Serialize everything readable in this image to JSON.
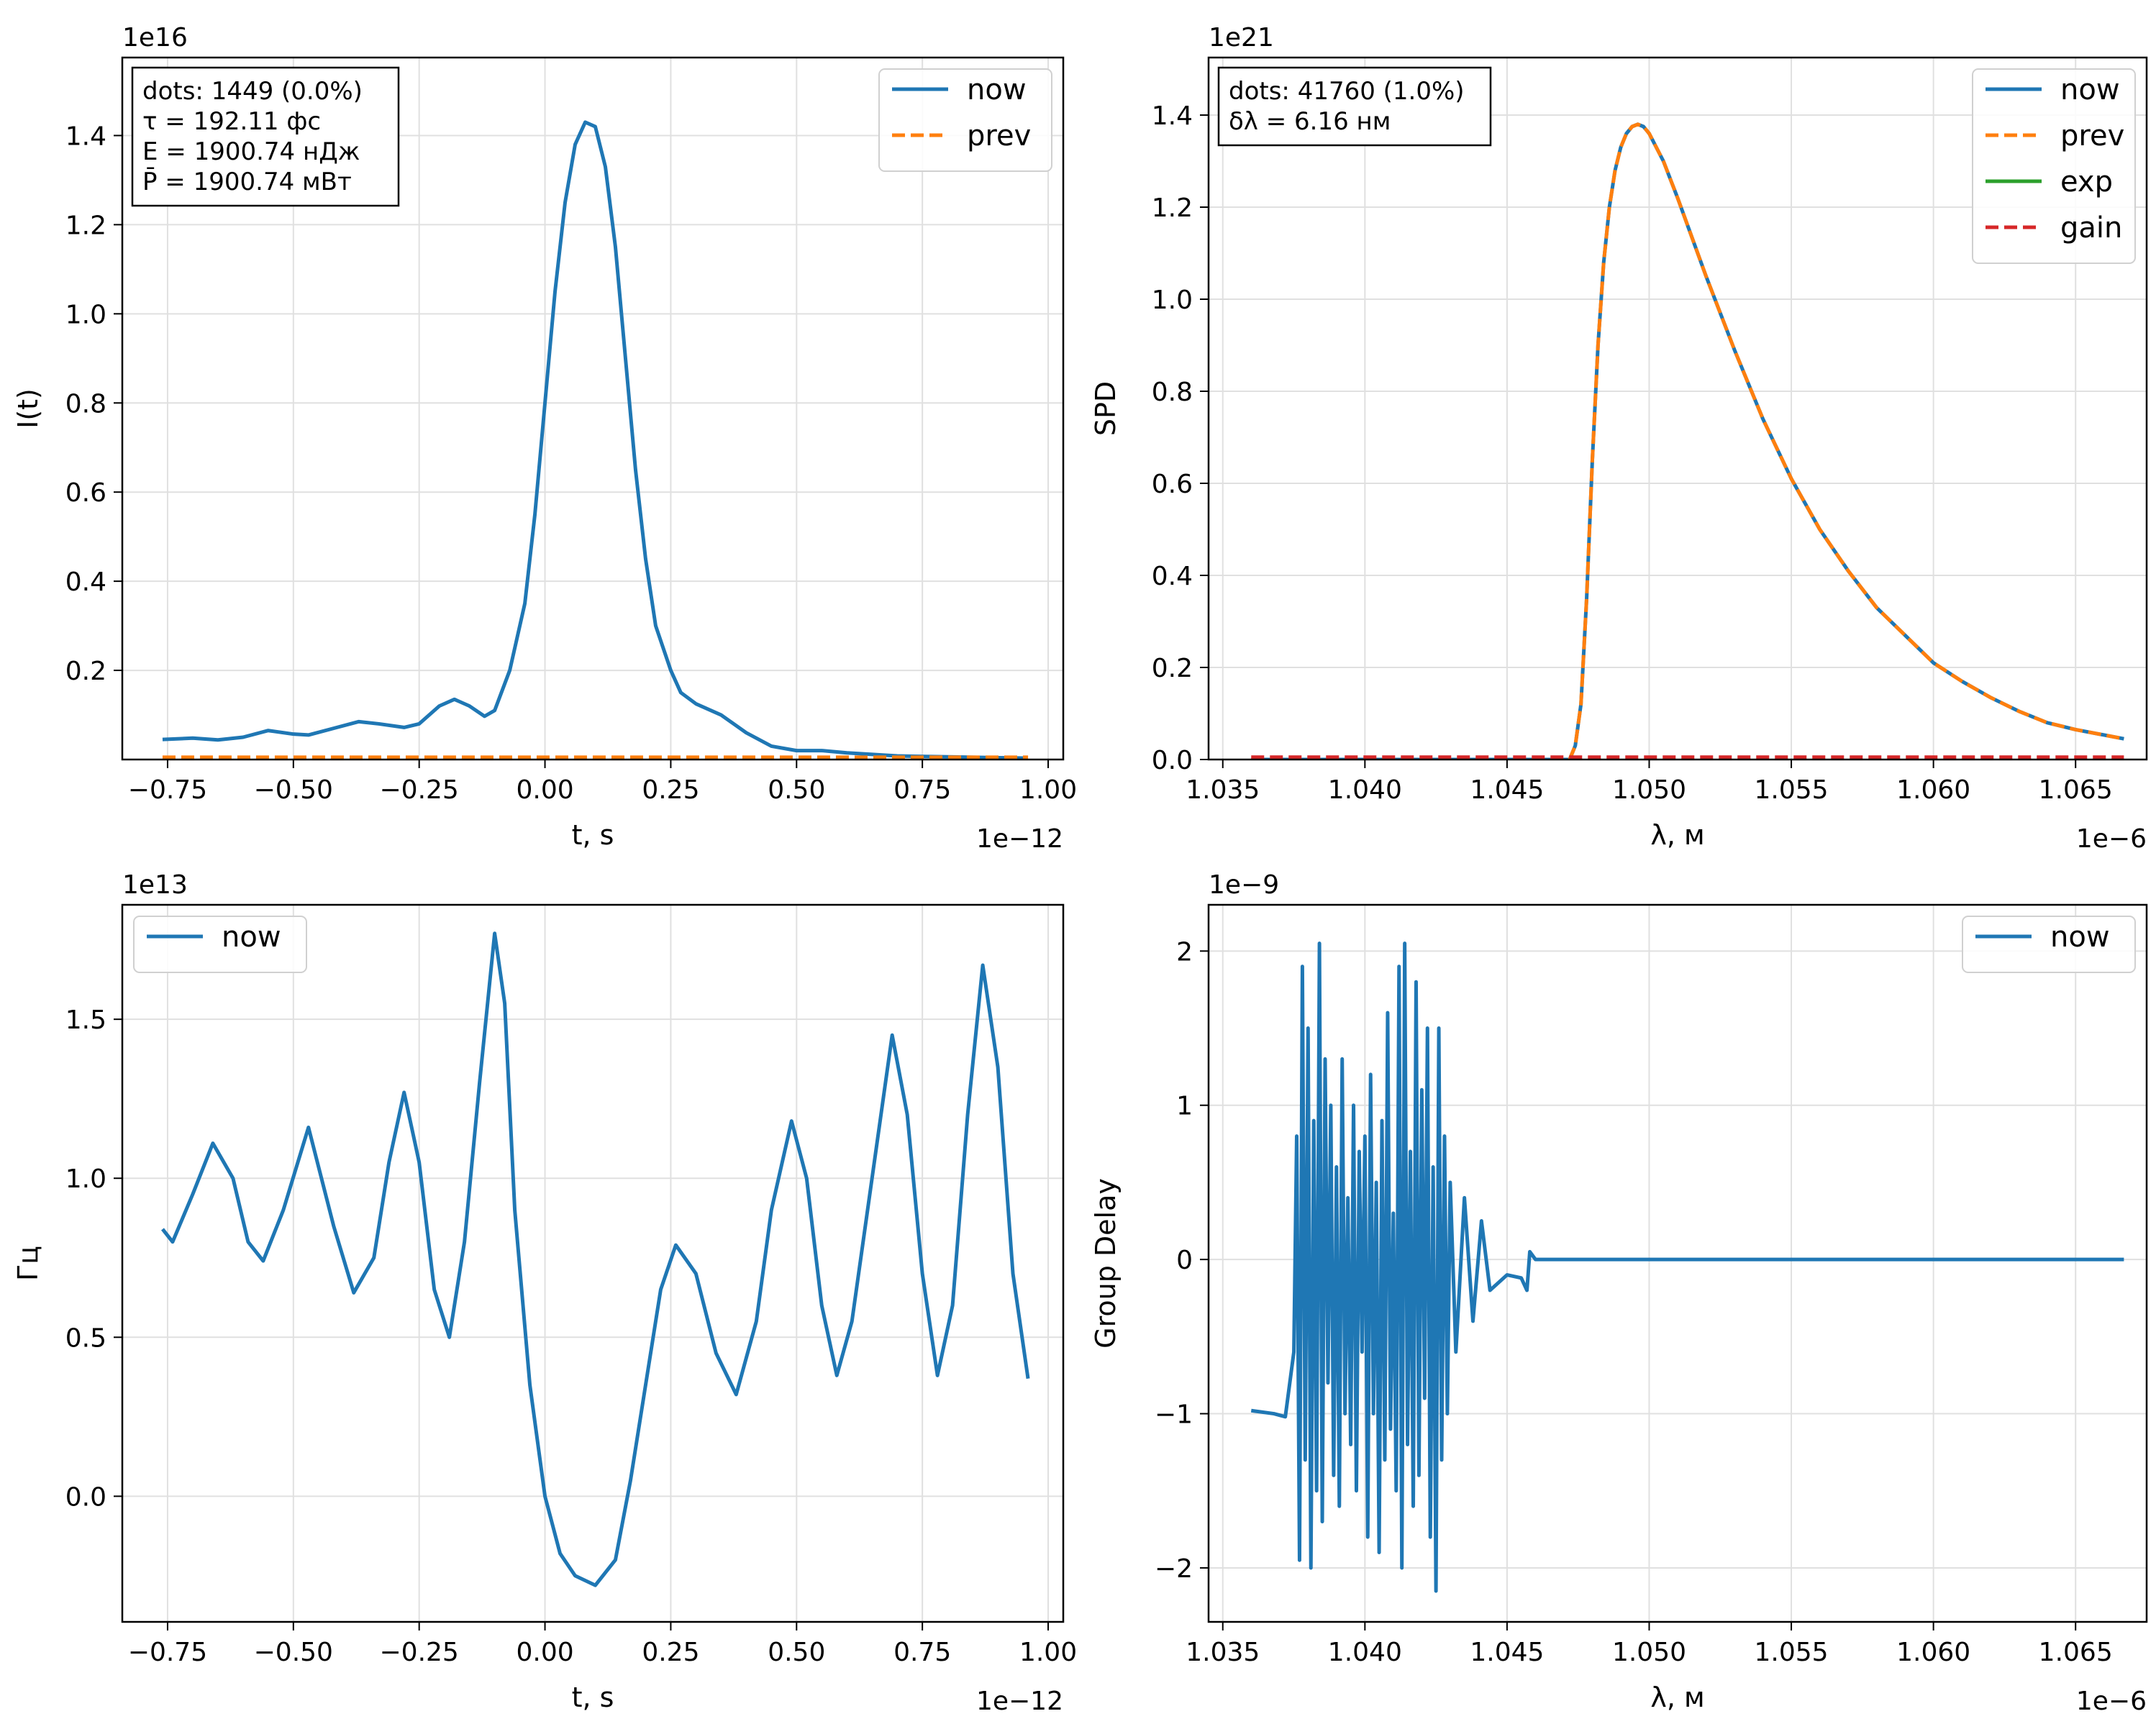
{
  "chart_data": [
    {
      "id": "ax1",
      "type": "line",
      "xlabel": "t, s",
      "ylabel": "I(t)",
      "x_offset": "1e−12",
      "y_offset": "1e16",
      "xlim": [
        -0.84,
        1.03
      ],
      "ylim": [
        0,
        1.575
      ],
      "xticks": [
        -0.75,
        -0.5,
        -0.25,
        0.0,
        0.25,
        0.5,
        0.75,
        1.0
      ],
      "xtick_labels": [
        "−0.75",
        "−0.50",
        "−0.25",
        "0.00",
        "0.25",
        "0.50",
        "0.75",
        "1.00"
      ],
      "yticks": [
        0.2,
        0.4,
        0.6,
        0.8,
        1.0,
        1.2,
        1.4
      ],
      "ytick_labels": [
        "0.2",
        "0.4",
        "0.6",
        "0.8",
        "1.0",
        "1.2",
        "1.4"
      ],
      "grid": true,
      "legend": "top-right",
      "info_box": [
        "dots: 1449 (0.0%)",
        "τ = 192.11 фс",
        "E = 1900.74 нДж",
        "P̄ = 1900.74 мВт"
      ],
      "series": [
        {
          "name": "now",
          "color": "#1f77b4",
          "style": "solid",
          "x": [
            -0.76,
            -0.7,
            -0.65,
            -0.6,
            -0.55,
            -0.5,
            -0.47,
            -0.42,
            -0.37,
            -0.33,
            -0.28,
            -0.25,
            -0.21,
            -0.18,
            -0.15,
            -0.12,
            -0.1,
            -0.07,
            -0.04,
            -0.02,
            0.0,
            0.02,
            0.04,
            0.06,
            0.08,
            0.1,
            0.12,
            0.14,
            0.16,
            0.18,
            0.2,
            0.22,
            0.25,
            0.27,
            0.3,
            0.35,
            0.4,
            0.45,
            0.5,
            0.55,
            0.6,
            0.7,
            0.8,
            0.9,
            0.96
          ],
          "y": [
            0.045,
            0.048,
            0.044,
            0.05,
            0.065,
            0.057,
            0.055,
            0.07,
            0.085,
            0.08,
            0.072,
            0.08,
            0.12,
            0.135,
            0.12,
            0.097,
            0.11,
            0.2,
            0.35,
            0.55,
            0.8,
            1.05,
            1.25,
            1.38,
            1.43,
            1.42,
            1.33,
            1.15,
            0.9,
            0.65,
            0.45,
            0.3,
            0.2,
            0.15,
            0.125,
            0.1,
            0.06,
            0.03,
            0.02,
            0.02,
            0.015,
            0.008,
            0.006,
            0.004,
            0.003
          ]
        },
        {
          "name": "prev",
          "color": "#ff7f0e",
          "style": "dashed",
          "x": [
            -0.76,
            0.96
          ],
          "y": [
            0.005,
            0.005
          ]
        }
      ]
    },
    {
      "id": "ax2",
      "type": "line",
      "xlabel": "λ, м",
      "ylabel": "SPD",
      "x_offset": "1e−6",
      "y_offset": "1e21",
      "xlim": [
        1.0345,
        1.0675
      ],
      "ylim": [
        0,
        1.525
      ],
      "xticks": [
        1.035,
        1.04,
        1.045,
        1.05,
        1.055,
        1.06,
        1.065
      ],
      "xtick_labels": [
        "1.035",
        "1.040",
        "1.045",
        "1.050",
        "1.055",
        "1.060",
        "1.065"
      ],
      "yticks": [
        0.0,
        0.2,
        0.4,
        0.6,
        0.8,
        1.0,
        1.2,
        1.4
      ],
      "ytick_labels": [
        "0.0",
        "0.2",
        "0.4",
        "0.6",
        "0.8",
        "1.0",
        "1.2",
        "1.4"
      ],
      "grid": true,
      "legend": "top-right",
      "info_box": [
        "dots: 41760 (1.0%)",
        "δλ = 6.16 нм"
      ],
      "series": [
        {
          "name": "now",
          "color": "#1f77b4",
          "style": "solid",
          "x": [
            1.036,
            1.0472,
            1.0474,
            1.0476,
            1.0478,
            1.048,
            1.0482,
            1.0484,
            1.0486,
            1.0488,
            1.049,
            1.0492,
            1.0494,
            1.0496,
            1.0498,
            1.05,
            1.0505,
            1.051,
            1.052,
            1.053,
            1.054,
            1.055,
            1.056,
            1.057,
            1.058,
            1.059,
            1.06,
            1.061,
            1.062,
            1.063,
            1.064,
            1.065,
            1.0667
          ],
          "y": [
            0.0,
            0.0,
            0.03,
            0.12,
            0.35,
            0.65,
            0.9,
            1.08,
            1.2,
            1.28,
            1.33,
            1.36,
            1.375,
            1.38,
            1.375,
            1.36,
            1.3,
            1.22,
            1.05,
            0.89,
            0.74,
            0.61,
            0.5,
            0.41,
            0.33,
            0.27,
            0.21,
            0.17,
            0.135,
            0.105,
            0.08,
            0.065,
            0.045
          ]
        },
        {
          "name": "prev",
          "color": "#ff7f0e",
          "style": "dashed",
          "x": [
            1.036,
            1.0472,
            1.0474,
            1.0476,
            1.0478,
            1.048,
            1.0482,
            1.0484,
            1.0486,
            1.0488,
            1.049,
            1.0492,
            1.0494,
            1.0496,
            1.0498,
            1.05,
            1.0505,
            1.051,
            1.052,
            1.053,
            1.054,
            1.055,
            1.056,
            1.057,
            1.058,
            1.059,
            1.06,
            1.061,
            1.062,
            1.063,
            1.064,
            1.065,
            1.0667
          ],
          "y": [
            0.0,
            0.0,
            0.03,
            0.12,
            0.35,
            0.65,
            0.9,
            1.08,
            1.2,
            1.28,
            1.33,
            1.36,
            1.375,
            1.38,
            1.375,
            1.36,
            1.3,
            1.22,
            1.05,
            0.89,
            0.74,
            0.61,
            0.5,
            0.41,
            0.33,
            0.27,
            0.21,
            0.17,
            0.135,
            0.105,
            0.08,
            0.065,
            0.045
          ]
        },
        {
          "name": "exp",
          "color": "#2ca02c",
          "style": "solid",
          "x": [],
          "y": []
        },
        {
          "name": "gain",
          "color": "#d62728",
          "style": "dashed",
          "x": [
            1.036,
            1.0667
          ],
          "y": [
            0.005,
            0.005
          ]
        }
      ]
    },
    {
      "id": "ax3",
      "type": "line",
      "xlabel": "t, s",
      "ylabel": "Гц",
      "x_offset": "1e−12",
      "y_offset": "1e13",
      "xlim": [
        -0.84,
        1.03
      ],
      "ylim": [
        -0.395,
        1.86
      ],
      "xticks": [
        -0.75,
        -0.5,
        -0.25,
        0.0,
        0.25,
        0.5,
        0.75,
        1.0
      ],
      "xtick_labels": [
        "−0.75",
        "−0.50",
        "−0.25",
        "0.00",
        "0.25",
        "0.50",
        "0.75",
        "1.00"
      ],
      "yticks": [
        0.0,
        0.5,
        1.0,
        1.5
      ],
      "ytick_labels": [
        "0.0",
        "0.5",
        "1.0",
        "1.5"
      ],
      "grid": true,
      "legend": "top-left",
      "series": [
        {
          "name": "now",
          "color": "#1f77b4",
          "style": "solid",
          "x": [
            -0.76,
            -0.74,
            -0.7,
            -0.66,
            -0.62,
            -0.59,
            -0.56,
            -0.52,
            -0.47,
            -0.42,
            -0.38,
            -0.34,
            -0.31,
            -0.28,
            -0.25,
            -0.22,
            -0.19,
            -0.16,
            -0.13,
            -0.1,
            -0.08,
            -0.06,
            -0.03,
            0.0,
            0.03,
            0.06,
            0.1,
            0.14,
            0.17,
            0.2,
            0.23,
            0.26,
            0.3,
            0.34,
            0.38,
            0.42,
            0.45,
            0.49,
            0.52,
            0.55,
            0.58,
            0.61,
            0.65,
            0.69,
            0.72,
            0.75,
            0.78,
            0.81,
            0.84,
            0.87,
            0.9,
            0.93,
            0.96
          ],
          "y": [
            0.84,
            0.8,
            0.95,
            1.11,
            1.0,
            0.8,
            0.74,
            0.9,
            1.16,
            0.85,
            0.64,
            0.75,
            1.05,
            1.27,
            1.05,
            0.65,
            0.5,
            0.8,
            1.3,
            1.77,
            1.55,
            0.9,
            0.35,
            0.0,
            -0.18,
            -0.25,
            -0.28,
            -0.2,
            0.05,
            0.35,
            0.65,
            0.79,
            0.7,
            0.45,
            0.32,
            0.55,
            0.9,
            1.18,
            1.0,
            0.6,
            0.38,
            0.55,
            1.0,
            1.45,
            1.2,
            0.7,
            0.38,
            0.6,
            1.2,
            1.67,
            1.35,
            0.7,
            0.37
          ]
        }
      ]
    },
    {
      "id": "ax4",
      "type": "line",
      "xlabel": "λ, м",
      "ylabel": "Group Delay",
      "x_offset": "1e−6",
      "y_offset": "1e−9",
      "xlim": [
        1.0345,
        1.0675
      ],
      "ylim": [
        -2.35,
        2.3
      ],
      "xticks": [
        1.035,
        1.04,
        1.045,
        1.05,
        1.055,
        1.06,
        1.065
      ],
      "xtick_labels": [
        "1.035",
        "1.040",
        "1.045",
        "1.050",
        "1.055",
        "1.060",
        "1.065"
      ],
      "yticks": [
        -2,
        -1,
        0,
        1,
        2
      ],
      "ytick_labels": [
        "−2",
        "−1",
        "0",
        "1",
        "2"
      ],
      "grid": true,
      "legend": "top-right",
      "series": [
        {
          "name": "now",
          "color": "#1f77b4",
          "style": "solid",
          "x": [
            1.036,
            1.0368,
            1.0372,
            1.0375,
            1.0376,
            1.0377,
            1.0378,
            1.0379,
            1.038,
            1.0381,
            1.0382,
            1.0383,
            1.0384,
            1.0385,
            1.0386,
            1.0387,
            1.0388,
            1.0389,
            1.039,
            1.0391,
            1.0392,
            1.0393,
            1.0394,
            1.0395,
            1.0396,
            1.0397,
            1.0398,
            1.0399,
            1.04,
            1.0401,
            1.0402,
            1.0403,
            1.0404,
            1.0405,
            1.0406,
            1.0407,
            1.0408,
            1.0409,
            1.041,
            1.0411,
            1.0412,
            1.0413,
            1.0414,
            1.0415,
            1.0416,
            1.0417,
            1.0418,
            1.0419,
            1.042,
            1.0421,
            1.0422,
            1.0423,
            1.0424,
            1.0425,
            1.0426,
            1.0427,
            1.0428,
            1.0429,
            1.043,
            1.0432,
            1.0435,
            1.0438,
            1.0441,
            1.0444,
            1.0447,
            1.045,
            1.0455,
            1.0457,
            1.0458,
            1.046,
            1.05,
            1.055,
            1.06,
            1.0667
          ],
          "y": [
            -0.98,
            -1.0,
            -1.02,
            -0.6,
            0.8,
            -1.95,
            1.9,
            -1.3,
            1.5,
            -2.0,
            0.9,
            -1.5,
            2.05,
            -1.7,
            1.3,
            -0.8,
            1.0,
            -1.4,
            0.6,
            -1.6,
            1.3,
            -1.0,
            0.4,
            -1.2,
            1.0,
            -1.5,
            0.7,
            -0.6,
            0.8,
            -1.8,
            1.2,
            -1.0,
            0.5,
            -1.9,
            0.9,
            -1.3,
            1.6,
            -1.1,
            0.3,
            -1.5,
            1.9,
            -2.0,
            2.05,
            -1.2,
            0.7,
            -1.6,
            1.8,
            -1.4,
            1.1,
            -0.9,
            1.5,
            -1.8,
            0.6,
            -2.15,
            1.5,
            -1.3,
            0.8,
            -1.0,
            0.5,
            -0.6,
            0.4,
            -0.4,
            0.25,
            -0.2,
            -0.15,
            -0.1,
            -0.12,
            -0.2,
            0.05,
            0.0,
            0.0,
            0.0,
            0.0,
            0.0
          ]
        }
      ]
    }
  ]
}
